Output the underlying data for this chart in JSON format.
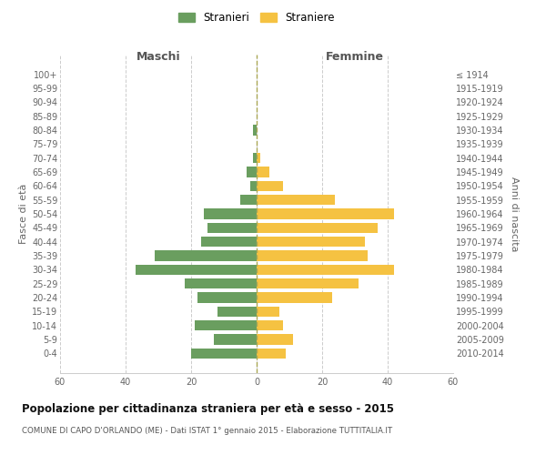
{
  "age_groups": [
    "100+",
    "95-99",
    "90-94",
    "85-89",
    "80-84",
    "75-79",
    "70-74",
    "65-69",
    "60-64",
    "55-59",
    "50-54",
    "45-49",
    "40-44",
    "35-39",
    "30-34",
    "25-29",
    "20-24",
    "15-19",
    "10-14",
    "5-9",
    "0-4"
  ],
  "birth_years": [
    "≤ 1914",
    "1915-1919",
    "1920-1924",
    "1925-1929",
    "1930-1934",
    "1935-1939",
    "1940-1944",
    "1945-1949",
    "1950-1954",
    "1955-1959",
    "1960-1964",
    "1965-1969",
    "1970-1974",
    "1975-1979",
    "1980-1984",
    "1985-1989",
    "1990-1994",
    "1995-1999",
    "2000-2004",
    "2005-2009",
    "2010-2014"
  ],
  "maschi": [
    0,
    0,
    0,
    0,
    1,
    0,
    1,
    3,
    2,
    5,
    16,
    15,
    17,
    31,
    37,
    22,
    18,
    12,
    19,
    13,
    20
  ],
  "femmine": [
    0,
    0,
    0,
    0,
    0,
    0,
    1,
    4,
    8,
    24,
    42,
    37,
    33,
    34,
    42,
    31,
    23,
    7,
    8,
    11,
    9
  ],
  "color_maschi": "#6a9e5f",
  "color_femmine": "#f5c242",
  "title": "Popolazione per cittadinanza straniera per età e sesso - 2015",
  "subtitle": "COMUNE DI CAPO D'ORLANDO (ME) - Dati ISTAT 1° gennaio 2015 - Elaborazione TUTTITALIA.IT",
  "xlabel_left": "Maschi",
  "xlabel_right": "Femmine",
  "ylabel_left": "Fasce di età",
  "ylabel_right": "Anni di nascita",
  "legend_maschi": "Stranieri",
  "legend_femmine": "Straniere",
  "xlim": 60,
  "bg_color": "#ffffff",
  "grid_color": "#cccccc",
  "bar_height": 0.75
}
